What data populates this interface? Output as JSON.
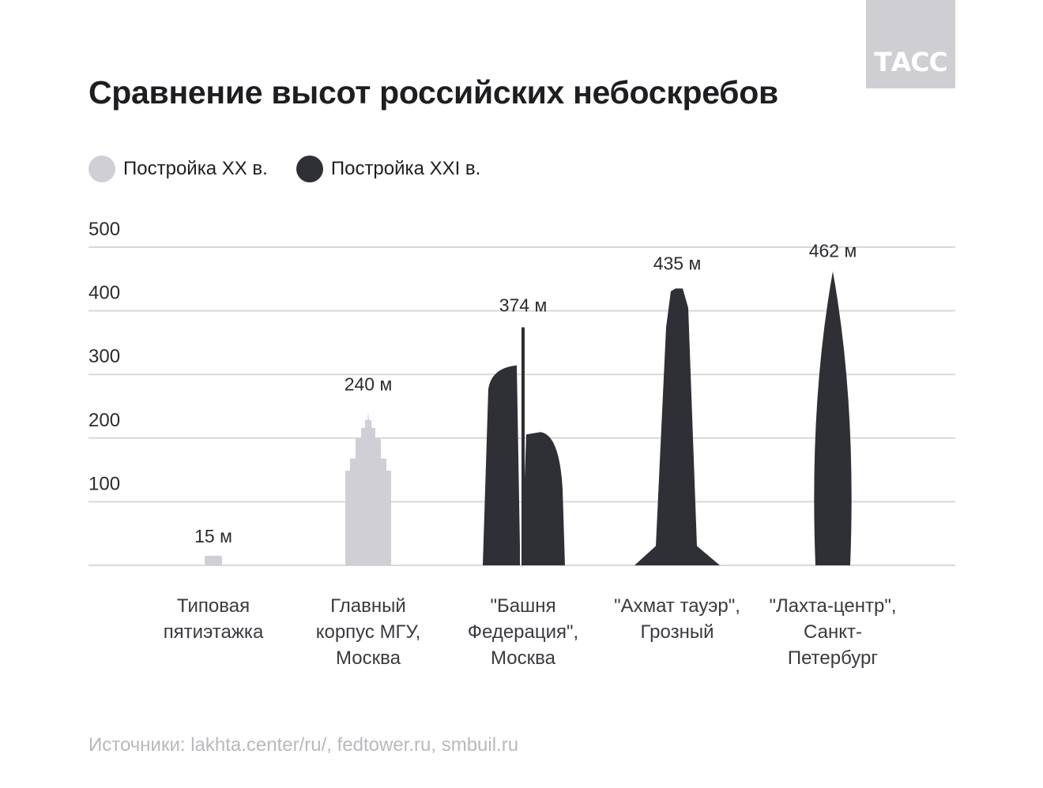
{
  "logo": "ТАСС",
  "title": "Сравнение высот российских небоскребов",
  "legend": [
    {
      "label": "Постройка XX в.",
      "color": "#cfcfd5"
    },
    {
      "label": "Постройка XXI в.",
      "color": "#2f2f36"
    }
  ],
  "source": "Источники: lakhta.center/ru/, fedtower.ru, smbuil.ru",
  "chart_data": {
    "type": "bar",
    "ylim": [
      0,
      500
    ],
    "yticks": [
      "100",
      "200",
      "300",
      "400",
      "500"
    ],
    "grid": true,
    "categories": [
      [
        "Типовая",
        "пятиэтажка"
      ],
      [
        "Главный",
        "корпус МГУ,",
        "Москва"
      ],
      [
        "\"Башня",
        "Федерация\",",
        "Москва"
      ],
      [
        "\"Ахмат тауэр\",",
        "Грозный"
      ],
      [
        "\"Лахта-центр\",",
        "Санкт-",
        "Петербург"
      ]
    ],
    "values": [
      15,
      240,
      374,
      435,
      462
    ],
    "value_labels": [
      "15 м",
      "240 м",
      "374 м",
      "435 м",
      "462 м"
    ],
    "era": [
      "XX",
      "XX",
      "XXI",
      "XXI",
      "XXI"
    ]
  }
}
